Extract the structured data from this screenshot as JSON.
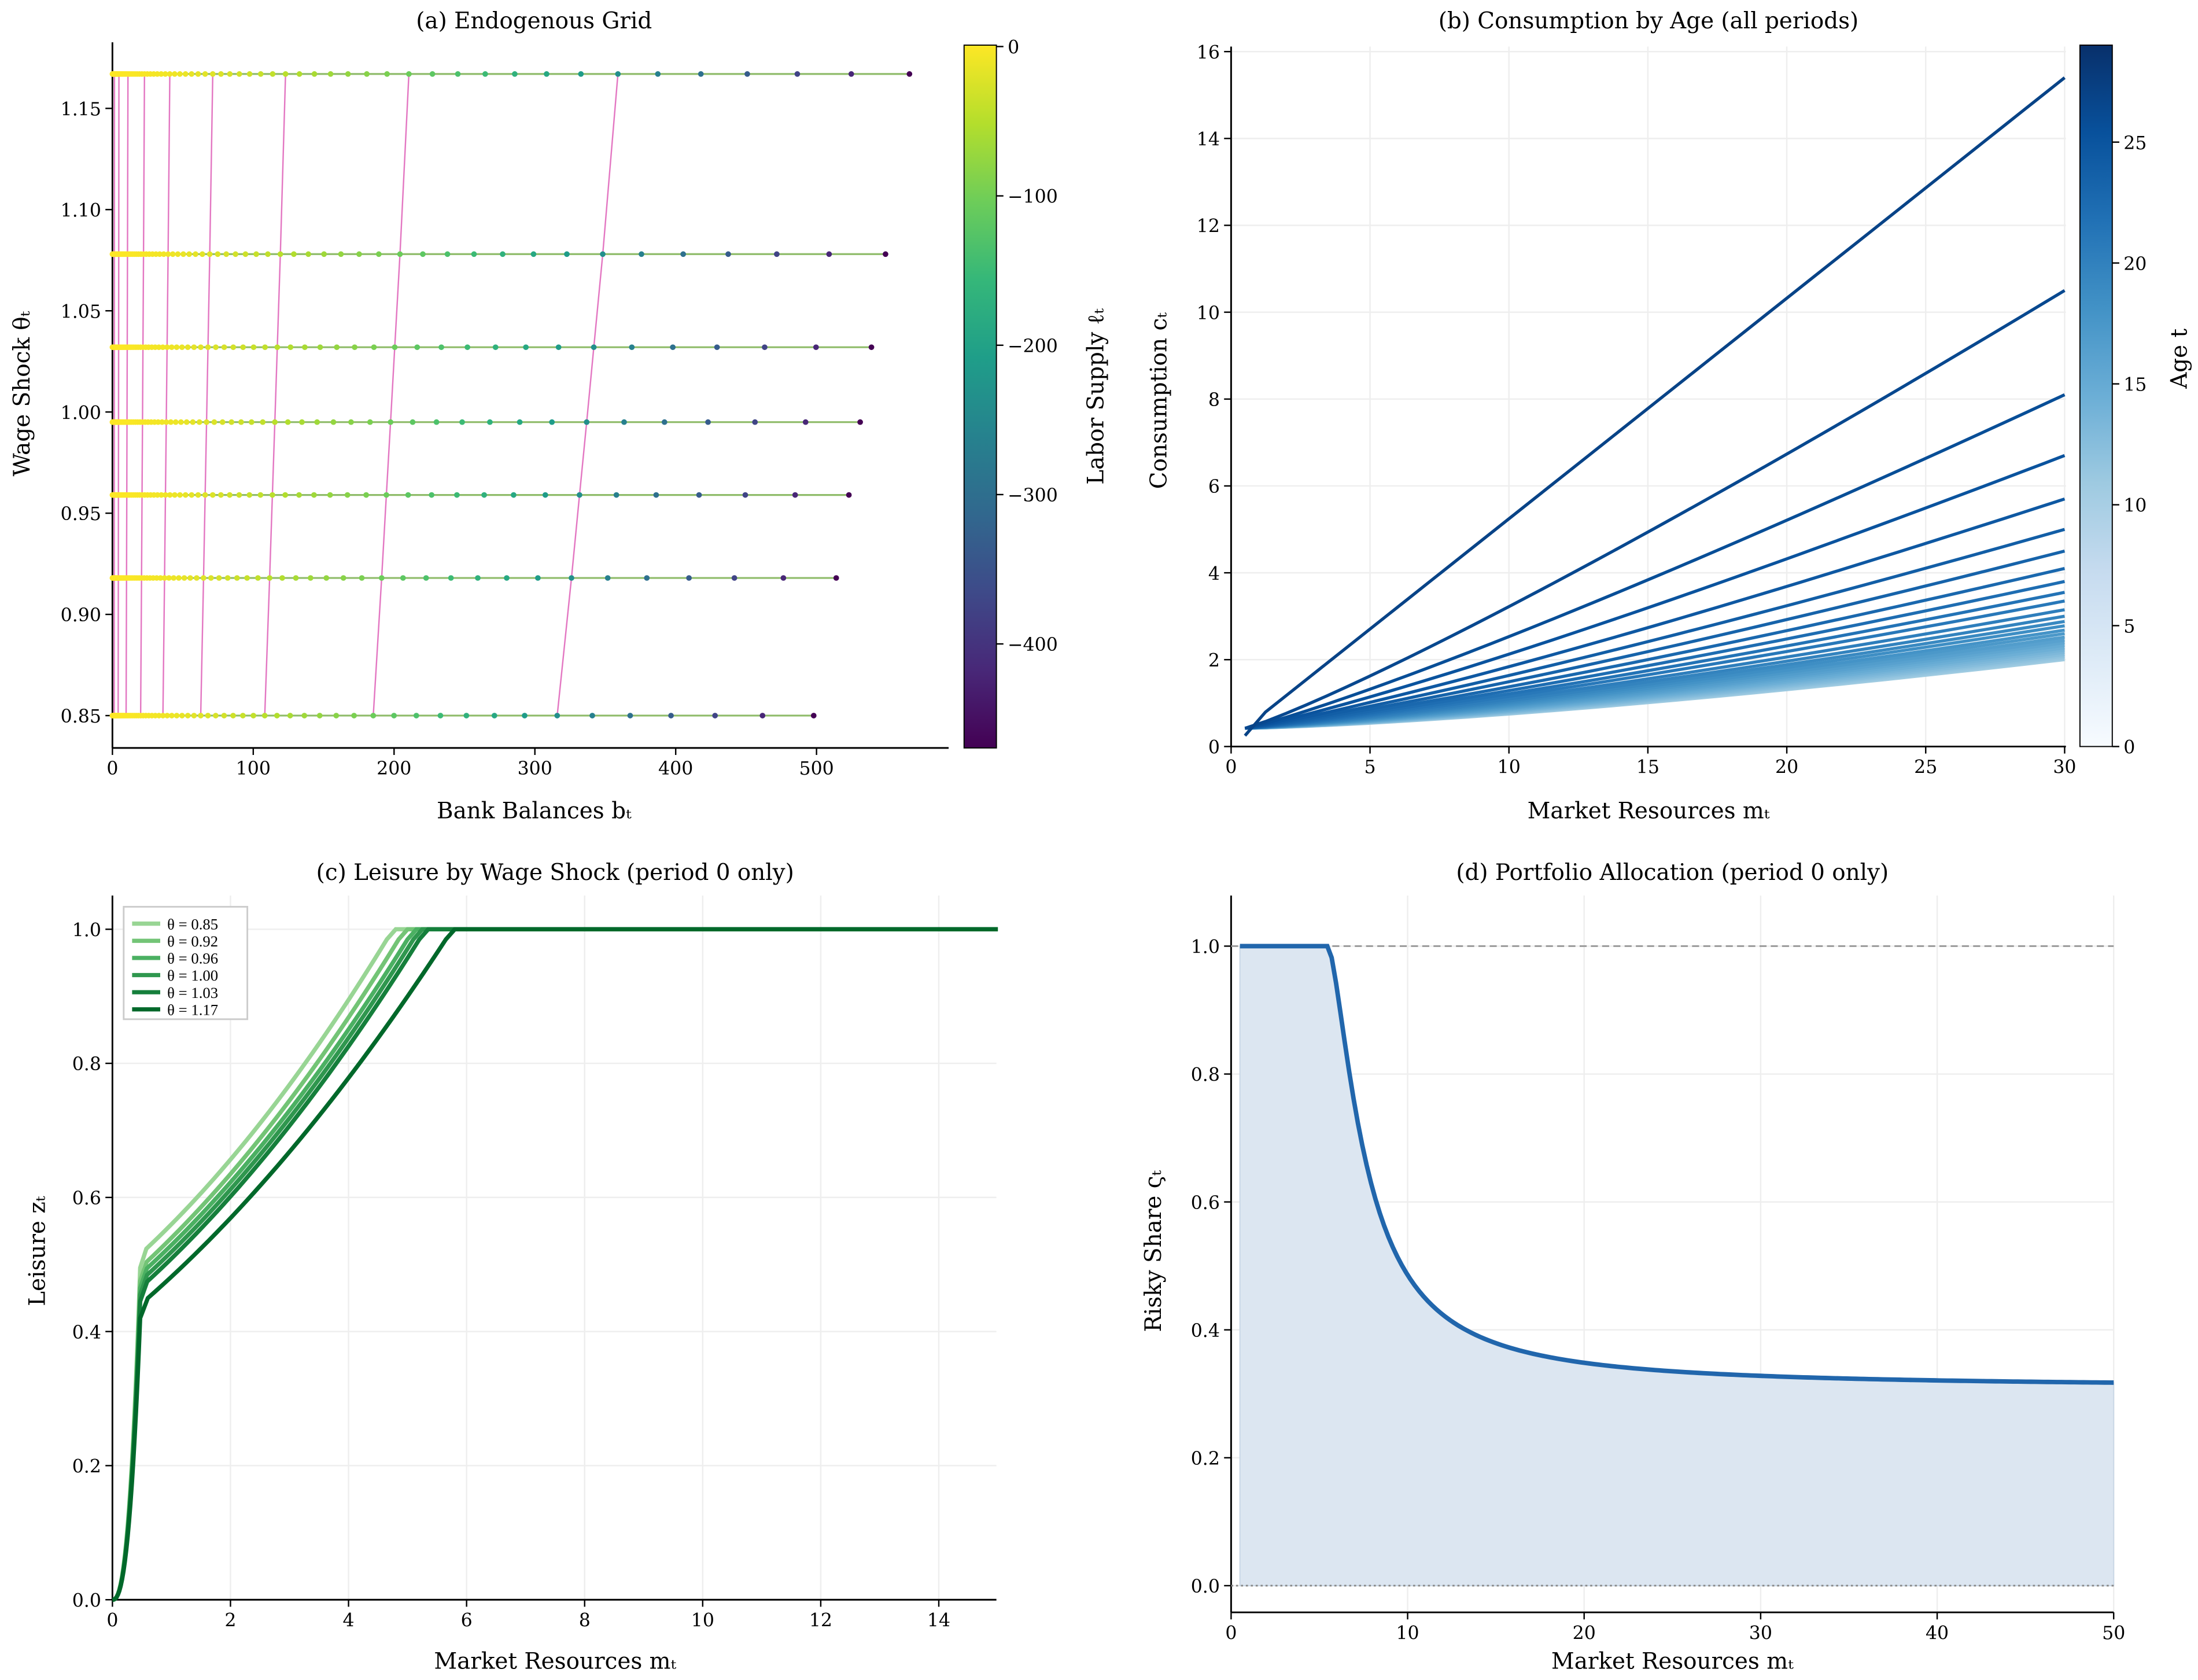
{
  "chart_data": [
    {
      "type": "scatter",
      "title": "(a) Endogenous Grid",
      "xlabel": "Bank Balances bₜ",
      "ylabel": "Wage Shock θₜ",
      "colorbar_label": "Labor Supply ℓₜ",
      "colormap": "viridis",
      "xlim": [
        0,
        595
      ],
      "ylim": [
        0.835,
        1.185
      ],
      "color_range": [
        -470,
        0
      ],
      "xticks": [
        "0",
        "100",
        "200",
        "300",
        "400",
        "500"
      ],
      "yticks": [
        "0.85",
        "0.90",
        "0.95",
        "1.00",
        "1.05",
        "1.10",
        "1.15"
      ],
      "cticks": [
        "0",
        "−100",
        "−200",
        "−300",
        "−400"
      ],
      "rows": [
        {
          "theta": 0.85,
          "b_max": 498
        },
        {
          "theta": 0.918,
          "b_max": 514
        },
        {
          "theta": 0.959,
          "b_max": 523
        },
        {
          "theta": 0.995,
          "b_max": 531
        },
        {
          "theta": 1.032,
          "b_max": 539
        },
        {
          "theta": 1.078,
          "b_max": 549
        },
        {
          "theta": 1.167,
          "b_max": 566
        }
      ],
      "connector_color": "#e377c2",
      "row_line_color": "#8fbc6a",
      "grid": false
    },
    {
      "type": "line",
      "title": "(b) Consumption by Age (all periods)",
      "xlabel": "Market Resources mₜ",
      "ylabel": "Consumption cₜ",
      "colorbar_label": "Age t",
      "colormap": "Blues",
      "xlim": [
        0,
        30
      ],
      "ylim": [
        0,
        16.2
      ],
      "color_range": [
        0,
        29
      ],
      "xticks": [
        "0",
        "5",
        "10",
        "15",
        "20",
        "25",
        "30"
      ],
      "yticks": [
        "0",
        "2",
        "4",
        "6",
        "8",
        "10",
        "12",
        "14",
        "16"
      ],
      "cticks": [
        "0",
        "5",
        "10",
        "15",
        "20",
        "25"
      ],
      "x_start": 0.5,
      "c_start": 0.42,
      "series_end_values_at_m30": [
        15.4,
        10.5,
        8.1,
        6.7,
        5.7,
        5.0,
        4.5,
        4.1,
        3.8,
        3.55,
        3.35,
        3.15,
        3.0,
        2.88,
        2.78,
        2.68,
        2.6,
        2.52,
        2.45,
        2.39,
        2.33,
        2.27,
        2.22,
        2.17,
        2.12,
        2.08,
        2.04,
        2.0
      ],
      "grid": true
    },
    {
      "type": "line",
      "title": "(c) Leisure by Wage Shock (period 0 only)",
      "xlabel": "Market Resources mₜ",
      "ylabel": "Leisure zₜ",
      "xlim": [
        0,
        15
      ],
      "ylim": [
        0,
        1.05
      ],
      "xticks": [
        "0",
        "2",
        "4",
        "6",
        "8",
        "10",
        "12",
        "14"
      ],
      "yticks": [
        "0.0",
        "0.2",
        "0.4",
        "0.6",
        "0.8",
        "1.0"
      ],
      "legend_position": "top-left",
      "series": [
        {
          "name": "θ = 0.85",
          "color": "#98d594",
          "kink_value": 0.515,
          "saturation_m": 4.8
        },
        {
          "name": "θ = 0.92",
          "color": "#73c476",
          "kink_value": 0.495,
          "saturation_m": 5.0
        },
        {
          "name": "θ = 0.96",
          "color": "#4bb062",
          "kink_value": 0.485,
          "saturation_m": 5.15
        },
        {
          "name": "θ = 1.00",
          "color": "#2f974e",
          "kink_value": 0.475,
          "saturation_m": 5.25
        },
        {
          "name": "θ = 1.03",
          "color": "#157f3b",
          "kink_value": 0.465,
          "saturation_m": 5.35
        },
        {
          "name": "θ = 1.17",
          "color": "#00682a",
          "kink_value": 0.44,
          "saturation_m": 5.8
        }
      ],
      "grid": true
    },
    {
      "type": "area",
      "title": "(d) Portfolio Allocation (period 0 only)",
      "xlabel": "Market Resources mₜ",
      "ylabel": "Risky Share ςₜ",
      "xlim": [
        0,
        50
      ],
      "ylim": [
        -0.02,
        1.08
      ],
      "xticks": [
        "0",
        "10",
        "20",
        "30",
        "40",
        "50"
      ],
      "yticks": [
        "0.0",
        "0.2",
        "0.4",
        "0.6",
        "0.8",
        "1.0"
      ],
      "points": [
        [
          0.5,
          1.0
        ],
        [
          5.5,
          1.0
        ],
        [
          7,
          0.78
        ],
        [
          10,
          0.5
        ],
        [
          15,
          0.38
        ],
        [
          20,
          0.35
        ],
        [
          30,
          0.325
        ],
        [
          40,
          0.317
        ],
        [
          50,
          0.313
        ]
      ],
      "reference_lines": [
        1.0,
        0.0
      ],
      "line_color": "#2166ac",
      "fill_color": "#dce6f1",
      "grid": true
    }
  ]
}
